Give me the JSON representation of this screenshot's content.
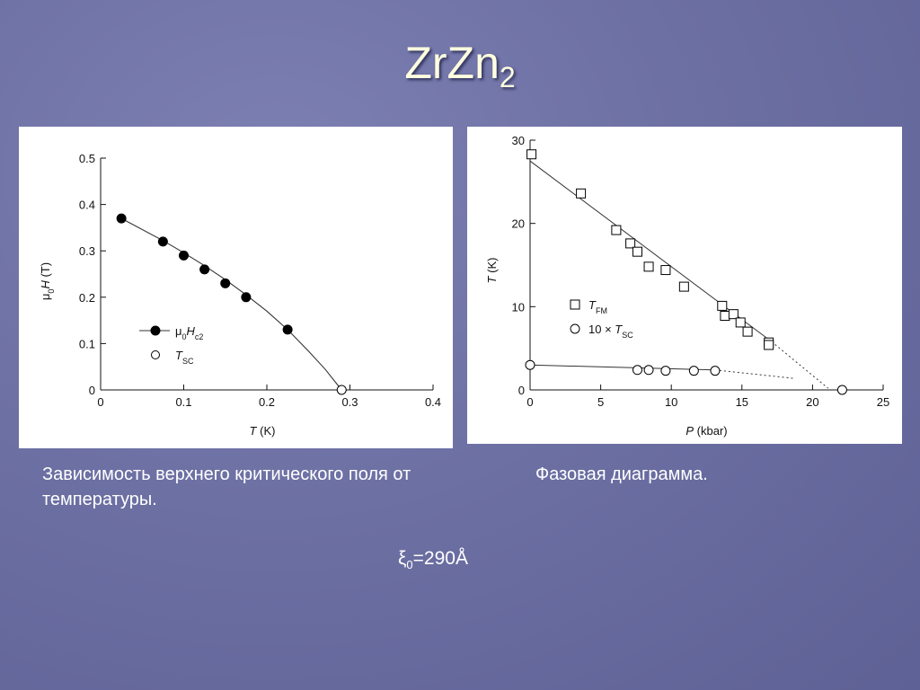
{
  "slide": {
    "title_main": "ZrZn",
    "title_sub": "2",
    "caption_left": "Зависимость верхнего критического поля от температуры.",
    "caption_right": "Фазовая диаграмма.",
    "xi_symbol": "ξ",
    "xi_sub": "0",
    "xi_value": "=290Å"
  },
  "chart_data": [
    {
      "type": "scatter",
      "xlabel": "T (K)",
      "ylabel": "μ0H (T)",
      "xlim": [
        0,
        0.4
      ],
      "ylim": [
        0,
        0.5
      ],
      "xticks": [
        0,
        0.1,
        0.2,
        0.3,
        0.4
      ],
      "xtick_labels": [
        "0",
        "0.1",
        "0.2",
        "0.3",
        "0.4"
      ],
      "yticks": [
        0,
        0.1,
        0.2,
        0.3,
        0.4,
        0.5
      ],
      "ytick_labels": [
        "0",
        "0.1",
        "0.2",
        "0.3",
        "0.4",
        "0.5"
      ],
      "legend_position": "center-left",
      "series": [
        {
          "name": "μ0Hc2",
          "marker": "filled-circle",
          "x": [
            0.025,
            0.075,
            0.1,
            0.125,
            0.15,
            0.175,
            0.225
          ],
          "y": [
            0.37,
            0.32,
            0.29,
            0.26,
            0.23,
            0.2,
            0.13
          ]
        },
        {
          "name": "TSC",
          "marker": "open-circle",
          "x": [
            0.29
          ],
          "y": [
            0
          ]
        }
      ],
      "fit_curve": {
        "x": [
          0.025,
          0.075,
          0.1,
          0.125,
          0.15,
          0.175,
          0.2,
          0.225,
          0.25,
          0.27,
          0.29
        ],
        "y": [
          0.37,
          0.322,
          0.296,
          0.268,
          0.238,
          0.205,
          0.17,
          0.13,
          0.084,
          0.045,
          0
        ]
      }
    },
    {
      "type": "scatter",
      "xlabel": "P (kbar)",
      "ylabel": "T (K)",
      "xlim": [
        0,
        25
      ],
      "ylim": [
        0,
        30
      ],
      "xticks": [
        0,
        5,
        10,
        15,
        20,
        25
      ],
      "xtick_labels": [
        "0",
        "5",
        "10",
        "15",
        "20",
        "25"
      ],
      "yticks": [
        0,
        10,
        20,
        30
      ],
      "ytick_labels": [
        "0",
        "10",
        "20",
        "30"
      ],
      "legend_position": "center",
      "series": [
        {
          "name": "TFM",
          "marker": "open-square",
          "x": [
            0.1,
            3.6,
            6.1,
            7.1,
            7.6,
            8.4,
            9.6,
            10.9,
            13.6,
            13.8,
            14.4,
            14.9,
            15.4,
            16.9,
            16.9
          ],
          "y": [
            28.3,
            23.6,
            19.2,
            17.6,
            16.6,
            14.8,
            14.4,
            12.4,
            10.1,
            8.9,
            9.1,
            8.1,
            7.0,
            5.7,
            5.4
          ]
        },
        {
          "name": "10 × TSC",
          "marker": "open-circle",
          "x": [
            0,
            7.6,
            8.4,
            9.6,
            11.6,
            13.1,
            22.1
          ],
          "y": [
            3.0,
            2.4,
            2.4,
            2.3,
            2.3,
            2.3,
            0
          ]
        }
      ],
      "fm_fit_line": {
        "x": [
          0,
          17.1
        ],
        "y": [
          27.5,
          5.8
        ]
      },
      "fm_dotted_extension": {
        "x": [
          17.1,
          21.1
        ],
        "y": [
          5.8,
          0.2
        ]
      },
      "sc_fit_line": {
        "x": [
          0,
          13.1
        ],
        "y": [
          3.0,
          2.4
        ]
      },
      "sc_dotted_extension": {
        "x": [
          13.1,
          18.6
        ],
        "y": [
          2.4,
          1.4
        ]
      }
    }
  ]
}
